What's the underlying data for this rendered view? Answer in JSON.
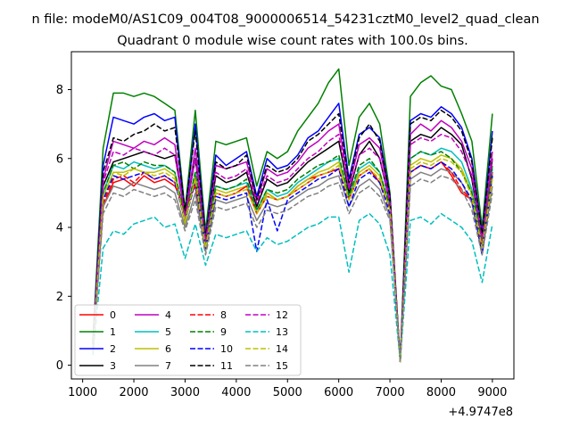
{
  "chart_data": {
    "type": "line",
    "suptitle": "n file: modeM0/AS1C09_004T08_9000006514_54231cztM0_level2_quad_clean",
    "title": "Quadrant 0 module wise count rates with 100.0s bins.",
    "xlabel": "",
    "ylabel": "",
    "x_offset_label": "+4.9747e8",
    "xlim": [
      780,
      9420
    ],
    "ylim": [
      -0.4,
      9.1
    ],
    "xticks": [
      1000,
      2000,
      3000,
      4000,
      5000,
      6000,
      7000,
      8000,
      9000
    ],
    "xtick_labels": [
      "1000",
      "2000",
      "3000",
      "4000",
      "5000",
      "6000",
      "7000",
      "8000",
      "9000"
    ],
    "yticks": [
      0,
      2,
      4,
      6,
      8
    ],
    "ytick_labels": [
      "0",
      "2",
      "4",
      "6",
      "8"
    ],
    "grid": false,
    "legend_position": "lower-left",
    "legend_columns": 4,
    "colors": {
      "red": "#ff0000",
      "green": "#008000",
      "blue": "#0000ff",
      "black": "#000000",
      "magenta": "#bf00bf",
      "cyan": "#00bfbf",
      "olive": "#bfbf00",
      "gray": "#808080"
    },
    "x": [
      1200,
      1400,
      1600,
      1800,
      2000,
      2200,
      2400,
      2600,
      2800,
      3000,
      3200,
      3400,
      3600,
      3800,
      4000,
      4200,
      4400,
      4600,
      4800,
      5000,
      5200,
      5400,
      5600,
      5800,
      6000,
      6200,
      6400,
      6600,
      6800,
      7000,
      7200,
      7400,
      7600,
      7800,
      8000,
      8200,
      8400,
      8600,
      8800,
      9000
    ],
    "series": [
      {
        "name": "0",
        "color": "red",
        "dash": false,
        "values": [
          0.5,
          4.6,
          5.3,
          5.4,
          5.2,
          5.5,
          5.3,
          5.4,
          5.2,
          4.6,
          5.2,
          3.5,
          5.0,
          4.9,
          5.0,
          5.2,
          4.4,
          5.0,
          4.8,
          4.9,
          5.2,
          5.4,
          5.5,
          5.6,
          5.7,
          4.9,
          5.5,
          5.7,
          5.3,
          4.6,
          0.1,
          5.6,
          5.8,
          5.7,
          5.9,
          5.5,
          5.0,
          4.8,
          3.4,
          5.6
        ]
      },
      {
        "name": "1",
        "color": "green",
        "dash": false,
        "values": [
          0.7,
          6.3,
          7.9,
          7.9,
          7.8,
          7.9,
          7.8,
          7.6,
          7.4,
          4.5,
          7.4,
          3.9,
          6.5,
          6.4,
          6.5,
          6.6,
          5.2,
          6.2,
          6.0,
          6.2,
          6.8,
          7.2,
          7.6,
          8.2,
          8.6,
          5.8,
          7.2,
          7.6,
          7.0,
          5.0,
          0.1,
          7.8,
          8.2,
          8.4,
          8.1,
          8.0,
          7.3,
          6.5,
          4.0,
          7.3
        ]
      },
      {
        "name": "2",
        "color": "blue",
        "dash": false,
        "values": [
          0.6,
          5.8,
          7.2,
          7.1,
          7.0,
          7.2,
          7.3,
          7.1,
          7.2,
          4.3,
          7.0,
          3.7,
          6.1,
          5.8,
          6.0,
          6.2,
          4.9,
          6.0,
          5.7,
          5.8,
          6.1,
          6.6,
          6.8,
          7.2,
          7.6,
          5.4,
          6.7,
          6.9,
          6.6,
          4.9,
          0.1,
          7.1,
          7.3,
          7.2,
          7.5,
          7.3,
          6.9,
          6.0,
          3.8,
          6.8
        ]
      },
      {
        "name": "3",
        "color": "black",
        "dash": false,
        "values": [
          0.6,
          5.2,
          5.9,
          6.0,
          6.1,
          6.2,
          6.1,
          6.0,
          6.1,
          4.4,
          6.0,
          3.6,
          5.5,
          5.3,
          5.4,
          5.6,
          4.6,
          5.4,
          5.2,
          5.3,
          5.6,
          5.9,
          6.1,
          6.3,
          6.5,
          5.0,
          6.1,
          6.5,
          6.0,
          4.7,
          0.1,
          6.5,
          6.7,
          6.6,
          6.9,
          6.7,
          6.4,
          5.4,
          3.6,
          6.0
        ]
      },
      {
        "name": "4",
        "color": "magenta",
        "dash": false,
        "values": [
          0.6,
          5.4,
          6.5,
          6.4,
          6.3,
          6.5,
          6.4,
          6.6,
          6.4,
          4.3,
          6.3,
          3.6,
          5.8,
          5.7,
          5.8,
          5.9,
          4.8,
          5.7,
          5.5,
          5.6,
          5.9,
          6.3,
          6.5,
          6.8,
          7.0,
          5.2,
          6.4,
          6.6,
          6.3,
          4.8,
          0.1,
          6.7,
          7.0,
          6.8,
          7.1,
          6.9,
          6.5,
          5.7,
          3.7,
          6.2
        ]
      },
      {
        "name": "5",
        "color": "cyan",
        "dash": false,
        "values": [
          0.5,
          5.0,
          5.8,
          5.7,
          5.9,
          5.8,
          5.7,
          5.8,
          5.6,
          4.2,
          5.6,
          3.5,
          5.2,
          5.1,
          5.2,
          5.3,
          4.5,
          5.1,
          4.9,
          5.0,
          5.3,
          5.5,
          5.7,
          5.9,
          6.0,
          4.9,
          5.7,
          5.9,
          5.6,
          4.6,
          0.1,
          6.0,
          6.2,
          6.1,
          6.3,
          6.2,
          5.9,
          5.1,
          3.5,
          5.7
        ]
      },
      {
        "name": "6",
        "color": "olive",
        "dash": false,
        "values": [
          0.5,
          4.9,
          5.6,
          5.6,
          5.7,
          5.6,
          5.6,
          5.7,
          5.5,
          4.1,
          5.5,
          3.4,
          5.1,
          5.0,
          5.1,
          5.2,
          4.4,
          5.0,
          4.8,
          4.9,
          5.2,
          5.4,
          5.6,
          5.7,
          5.9,
          4.8,
          5.6,
          5.8,
          5.5,
          4.5,
          0.1,
          5.8,
          6.0,
          5.9,
          6.1,
          6.0,
          5.7,
          5.0,
          3.4,
          5.5
        ]
      },
      {
        "name": "7",
        "color": "gray",
        "dash": false,
        "values": [
          0.4,
          4.6,
          5.2,
          5.1,
          5.3,
          5.2,
          5.1,
          5.2,
          5.0,
          4.0,
          5.0,
          3.3,
          4.8,
          4.7,
          4.8,
          4.9,
          4.2,
          4.7,
          4.6,
          4.7,
          4.9,
          5.1,
          5.2,
          5.4,
          5.5,
          4.6,
          5.2,
          5.4,
          5.1,
          4.3,
          0.1,
          5.4,
          5.6,
          5.5,
          5.7,
          5.6,
          5.3,
          4.7,
          3.3,
          5.2
        ]
      },
      {
        "name": "8",
        "color": "red",
        "dash": true,
        "values": [
          0.5,
          4.7,
          5.4,
          5.5,
          5.3,
          5.6,
          5.4,
          5.5,
          5.3,
          4.4,
          5.3,
          3.5,
          5.0,
          4.9,
          5.0,
          5.2,
          4.4,
          4.9,
          4.8,
          4.9,
          5.1,
          5.3,
          5.5,
          5.6,
          5.7,
          4.8,
          5.5,
          5.7,
          5.3,
          4.5,
          0.1,
          5.6,
          5.8,
          5.7,
          5.9,
          5.6,
          5.1,
          4.8,
          3.4,
          5.6
        ]
      },
      {
        "name": "9",
        "color": "green",
        "dash": true,
        "values": [
          0.5,
          5.0,
          5.8,
          5.9,
          5.7,
          5.9,
          5.8,
          5.8,
          5.6,
          4.3,
          5.6,
          3.5,
          5.2,
          5.1,
          5.2,
          5.4,
          4.5,
          5.1,
          5.0,
          5.1,
          5.4,
          5.6,
          5.8,
          5.9,
          6.1,
          4.9,
          5.8,
          6.0,
          5.6,
          4.6,
          0.1,
          6.0,
          6.2,
          6.1,
          6.2,
          6.0,
          5.6,
          5.0,
          3.5,
          5.8
        ]
      },
      {
        "name": "10",
        "color": "blue",
        "dash": true,
        "values": [
          0.5,
          4.8,
          5.5,
          5.4,
          5.5,
          5.6,
          5.4,
          5.5,
          5.3,
          4.2,
          5.3,
          3.4,
          4.9,
          4.8,
          4.9,
          5.0,
          3.3,
          4.8,
          3.9,
          4.8,
          5.0,
          5.2,
          5.4,
          5.5,
          5.7,
          4.6,
          5.4,
          5.6,
          5.3,
          4.4,
          0.1,
          5.6,
          5.8,
          5.7,
          5.9,
          5.7,
          5.3,
          4.8,
          3.2,
          5.5
        ]
      },
      {
        "name": "11",
        "color": "black",
        "dash": true,
        "values": [
          0.6,
          5.6,
          6.6,
          6.5,
          6.7,
          6.8,
          7.0,
          6.8,
          6.9,
          4.5,
          6.8,
          3.7,
          5.9,
          5.7,
          5.8,
          6.1,
          4.8,
          5.8,
          5.6,
          5.7,
          6.0,
          6.5,
          6.7,
          7.0,
          7.3,
          5.3,
          6.6,
          7.0,
          6.5,
          4.9,
          0.1,
          7.0,
          7.2,
          7.1,
          7.4,
          7.2,
          6.8,
          5.9,
          3.8,
          6.6
        ]
      },
      {
        "name": "12",
        "color": "magenta",
        "dash": true,
        "values": [
          0.6,
          5.3,
          6.2,
          6.1,
          6.3,
          6.2,
          6.1,
          6.3,
          6.1,
          4.3,
          6.0,
          3.6,
          5.6,
          5.4,
          5.5,
          5.7,
          4.7,
          5.5,
          5.3,
          5.4,
          5.7,
          6.0,
          6.2,
          6.5,
          6.7,
          5.1,
          6.1,
          6.3,
          6.0,
          4.7,
          0.1,
          6.4,
          6.6,
          6.5,
          6.7,
          6.6,
          6.2,
          5.5,
          3.6,
          6.0
        ]
      },
      {
        "name": "13",
        "color": "cyan",
        "dash": true,
        "values": [
          0.3,
          3.4,
          3.9,
          3.8,
          4.1,
          4.2,
          4.3,
          4.0,
          4.1,
          3.1,
          4.1,
          2.9,
          3.8,
          3.7,
          3.8,
          3.9,
          3.3,
          3.7,
          3.5,
          3.6,
          3.8,
          4.0,
          4.1,
          4.3,
          4.3,
          2.7,
          4.2,
          4.4,
          4.1,
          3.2,
          0.1,
          4.2,
          4.3,
          4.1,
          4.4,
          4.2,
          4.0,
          3.6,
          2.4,
          4.1
        ]
      },
      {
        "name": "14",
        "color": "olive",
        "dash": true,
        "values": [
          0.5,
          4.9,
          5.6,
          5.5,
          5.7,
          5.6,
          5.5,
          5.6,
          5.4,
          4.2,
          5.4,
          3.4,
          5.0,
          4.9,
          5.0,
          5.1,
          4.4,
          4.9,
          4.8,
          4.9,
          5.1,
          5.3,
          5.5,
          5.6,
          5.8,
          4.8,
          5.5,
          5.7,
          5.4,
          4.5,
          0.1,
          5.7,
          5.9,
          5.8,
          6.0,
          5.9,
          5.6,
          4.9,
          3.4,
          5.4
        ]
      },
      {
        "name": "15",
        "color": "gray",
        "dash": true,
        "values": [
          0.4,
          4.4,
          5.0,
          4.9,
          5.1,
          5.0,
          4.9,
          5.0,
          4.8,
          3.9,
          4.8,
          3.2,
          4.6,
          4.5,
          4.6,
          4.7,
          4.0,
          4.5,
          4.4,
          4.5,
          4.7,
          4.9,
          5.0,
          5.2,
          5.3,
          4.4,
          5.0,
          5.2,
          4.9,
          4.2,
          0.1,
          5.2,
          5.4,
          5.3,
          5.5,
          5.4,
          5.1,
          4.5,
          3.2,
          5.0
        ]
      }
    ]
  }
}
